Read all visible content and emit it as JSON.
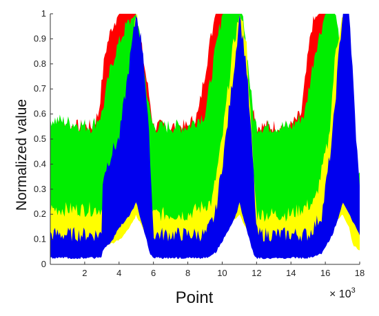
{
  "chart_data": {
    "type": "area",
    "title": "",
    "xlabel": "Point",
    "ylabel": "Normalized value",
    "x_multiplier_label": "× 10",
    "x_multiplier_exp": "3",
    "xlim": [
      0,
      18
    ],
    "ylim": [
      0,
      1
    ],
    "xticks": [
      2,
      4,
      6,
      8,
      10,
      12,
      14,
      16,
      18
    ],
    "yticks": [
      0,
      0.1,
      0.2,
      0.3,
      0.4,
      0.5,
      0.6,
      0.7,
      0.8,
      0.9,
      1
    ],
    "grid": false,
    "legend": "none",
    "series": [
      {
        "color": "#ff0000",
        "x": [
          0,
          2.4,
          2.8,
          3.2,
          3.6,
          4.0,
          4.4,
          5.0,
          5.8,
          6.0,
          8.0,
          8.6,
          9.2,
          9.6,
          10.0,
          10.4,
          11.0,
          11.6,
          12.0,
          14.0,
          14.6,
          15.2,
          15.6,
          16.0,
          16.6,
          17.2,
          17.6,
          18.0
        ],
        "upper": [
          0.55,
          0.55,
          0.6,
          0.85,
          0.95,
          1.0,
          1.0,
          1.0,
          0.65,
          0.55,
          0.55,
          0.6,
          0.85,
          1.0,
          1.0,
          1.0,
          1.0,
          0.7,
          0.55,
          0.55,
          0.6,
          0.95,
          1.0,
          1.0,
          1.0,
          0.5,
          0.35,
          0.3
        ],
        "lower": [
          0.12,
          0.12,
          0.12,
          0.12,
          0.15,
          0.2,
          0.22,
          0.25,
          0.2,
          0.12,
          0.12,
          0.12,
          0.12,
          0.15,
          0.2,
          0.25,
          0.25,
          0.2,
          0.12,
          0.12,
          0.12,
          0.15,
          0.2,
          0.25,
          0.3,
          0.22,
          0.18,
          0.14
        ]
      },
      {
        "color": "#00ee00",
        "x": [
          0,
          2.4,
          3.0,
          3.4,
          3.8,
          4.4,
          5.0,
          5.8,
          6.0,
          8.0,
          9.0,
          9.6,
          10.0,
          10.6,
          11.2,
          11.8,
          12.0,
          14.0,
          14.8,
          15.4,
          16.0,
          16.6,
          17.2,
          17.6,
          18.0
        ],
        "upper": [
          0.58,
          0.55,
          0.6,
          0.75,
          0.85,
          0.95,
          1.0,
          0.6,
          0.55,
          0.55,
          0.6,
          0.85,
          1.0,
          1.0,
          1.0,
          0.6,
          0.55,
          0.55,
          0.6,
          0.85,
          1.0,
          1.0,
          0.75,
          0.45,
          0.35
        ],
        "lower": [
          0.12,
          0.12,
          0.12,
          0.15,
          0.2,
          0.25,
          0.25,
          0.15,
          0.12,
          0.12,
          0.12,
          0.15,
          0.2,
          0.25,
          0.25,
          0.15,
          0.12,
          0.12,
          0.12,
          0.15,
          0.2,
          0.25,
          0.25,
          0.18,
          0.14
        ]
      },
      {
        "color": "#ffff00",
        "x": [
          0,
          2.8,
          3.2,
          4.0,
          4.6,
          5.0,
          5.4,
          5.8,
          6.0,
          8.0,
          9.4,
          10.0,
          10.6,
          11.0,
          11.4,
          11.8,
          12.0,
          14.0,
          15.4,
          16.2,
          16.6,
          17.0,
          17.4,
          17.6,
          18.0
        ],
        "upper": [
          0.22,
          0.22,
          0.22,
          0.4,
          0.75,
          1.0,
          0.8,
          0.3,
          0.2,
          0.2,
          0.25,
          0.5,
          0.85,
          1.0,
          0.9,
          0.4,
          0.2,
          0.2,
          0.25,
          0.5,
          0.85,
          1.0,
          0.8,
          0.3,
          0.2
        ],
        "lower": [
          0.08,
          0.08,
          0.08,
          0.1,
          0.15,
          0.2,
          0.15,
          0.08,
          0.06,
          0.06,
          0.08,
          0.12,
          0.18,
          0.2,
          0.15,
          0.08,
          0.06,
          0.06,
          0.08,
          0.12,
          0.18,
          0.2,
          0.15,
          0.08,
          0.06
        ]
      },
      {
        "color": "#0000ee",
        "x": [
          0,
          3.0,
          3.05,
          3.6,
          4.0,
          4.6,
          5.0,
          5.4,
          5.8,
          5.95,
          6.0,
          9.0,
          9.05,
          9.6,
          10.2,
          10.8,
          11.0,
          11.4,
          11.8,
          11.95,
          12.0,
          15.0,
          15.05,
          15.8,
          16.4,
          16.8,
          17.0,
          17.4,
          17.8,
          18.0
        ],
        "upper": [
          0.12,
          0.12,
          0.35,
          0.45,
          0.5,
          0.8,
          1.0,
          0.85,
          0.45,
          0.2,
          0.12,
          0.12,
          0.12,
          0.2,
          0.5,
          0.85,
          1.0,
          0.8,
          0.4,
          0.2,
          0.12,
          0.12,
          0.12,
          0.2,
          0.5,
          0.85,
          1.0,
          1.0,
          0.5,
          0.3
        ],
        "lower": [
          0.03,
          0.03,
          0.06,
          0.1,
          0.15,
          0.2,
          0.25,
          0.15,
          0.05,
          0.03,
          0.03,
          0.03,
          0.03,
          0.05,
          0.12,
          0.2,
          0.25,
          0.15,
          0.05,
          0.03,
          0.03,
          0.03,
          0.03,
          0.05,
          0.12,
          0.2,
          0.25,
          0.2,
          0.15,
          0.12
        ]
      }
    ]
  }
}
